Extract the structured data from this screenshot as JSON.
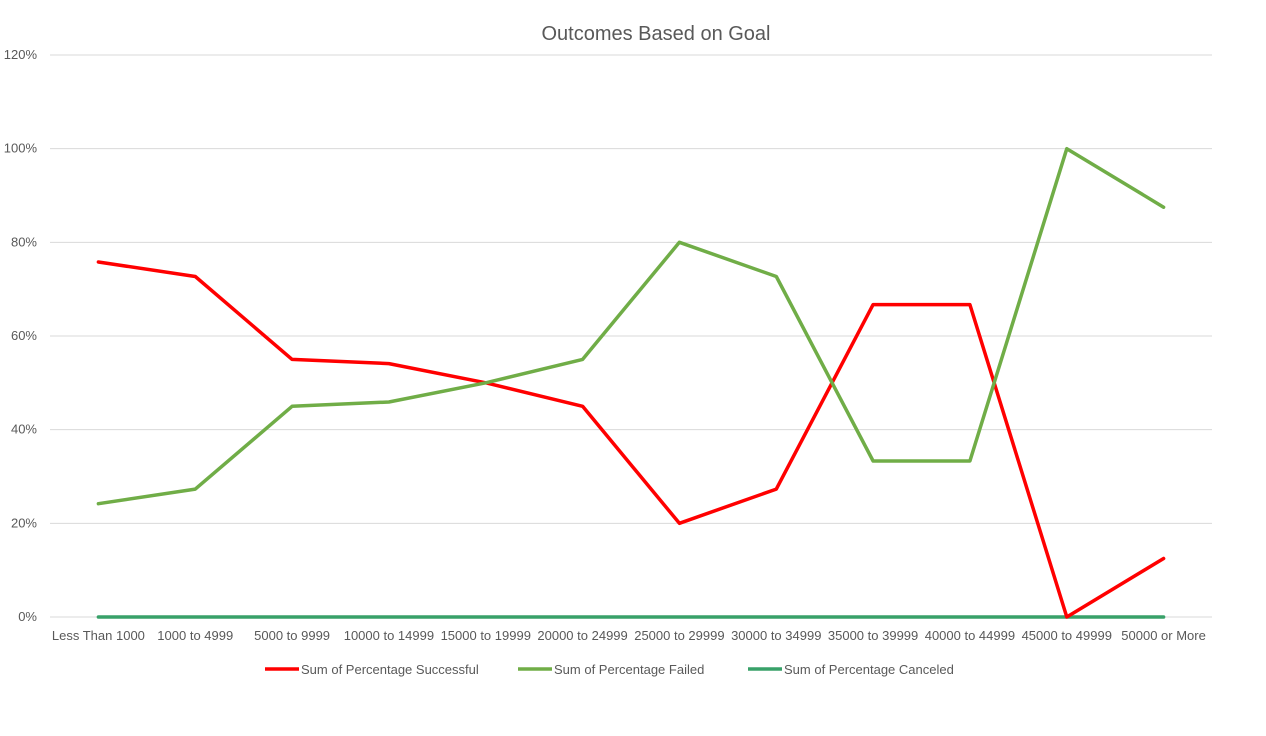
{
  "chart_data": {
    "type": "line",
    "title": "Outcomes Based on Goal",
    "xlabel": "",
    "ylabel": "",
    "categories": [
      "Less Than 1000",
      "1000 to 4999",
      "5000 to 9999",
      "10000 to 14999",
      "15000 to 19999",
      "20000 to 24999",
      "25000 to 29999",
      "30000 to 34999",
      "35000 to 39999",
      "40000 to 44999",
      "45000 to 49999",
      "50000 or More"
    ],
    "ylim": [
      0,
      1.2
    ],
    "yticks": [
      0,
      0.2,
      0.4,
      0.6,
      0.8,
      1.0,
      1.2
    ],
    "ytick_labels": [
      "0%",
      "20%",
      "40%",
      "60%",
      "80%",
      "100%",
      "120%"
    ],
    "grid": true,
    "legend_position": "bottom",
    "series": [
      {
        "name": "Sum of Percentage Successful",
        "color": "#ff0000",
        "values": [
          0.758,
          0.727,
          0.55,
          0.541,
          0.5,
          0.45,
          0.2,
          0.273,
          0.667,
          0.667,
          0.0,
          0.125
        ]
      },
      {
        "name": "Sum of Percentage Failed",
        "color": "#70ad47",
        "values": [
          0.242,
          0.273,
          0.45,
          0.459,
          0.5,
          0.55,
          0.8,
          0.727,
          0.333,
          0.333,
          1.0,
          0.875
        ]
      },
      {
        "name": "Sum of  Percentage Canceled",
        "color": "#38a169",
        "values": [
          0,
          0,
          0,
          0,
          0,
          0,
          0,
          0,
          0,
          0,
          0,
          0
        ]
      }
    ]
  }
}
